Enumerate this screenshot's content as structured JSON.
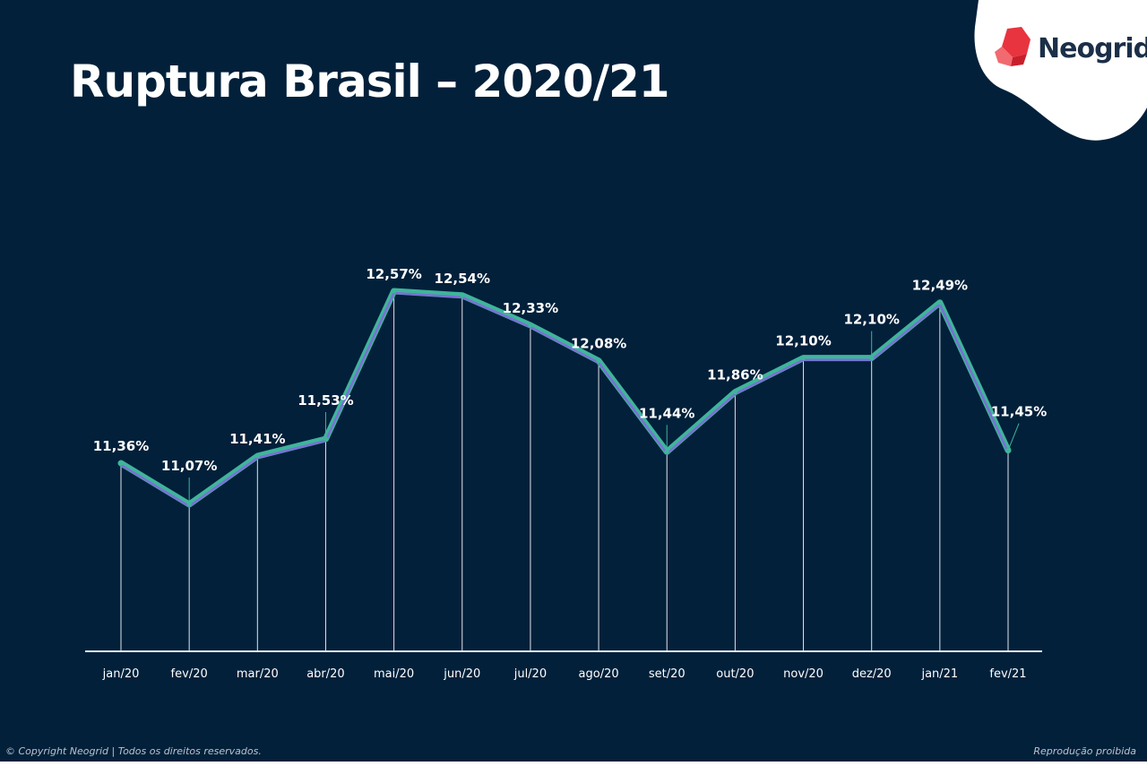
{
  "header": {
    "title": "Ruptura Brasil – 2020/21",
    "logo_text": "Neogrid"
  },
  "footer": {
    "copyright": "© Copyright Neogrid | Todos os direitos reservados.",
    "notice": "Reprodução proibida"
  },
  "colors": {
    "background": "#02203a",
    "line_outer": "#3fb59a",
    "line_inner": "#7a6fd6",
    "logo_red": "#e8343f"
  },
  "chart_data": {
    "type": "line",
    "categories": [
      "jan/20",
      "fev/20",
      "mar/20",
      "abr/20",
      "mai/20",
      "jun/20",
      "jul/20",
      "ago/20",
      "set/20",
      "out/20",
      "nov/20",
      "dez/20",
      "jan/21",
      "fev/21"
    ],
    "series": [
      {
        "values": [
          11.36,
          11.07,
          11.41,
          11.53,
          12.57,
          12.54,
          12.33,
          12.08,
          11.44,
          11.86,
          12.1,
          12.1,
          12.49,
          11.45
        ]
      }
    ],
    "data_labels": [
      "11,36%",
      "11,07%",
      "11,41%",
      "11,53%",
      "12,57%",
      "12,54%",
      "12,33%",
      "12,08%",
      "11,44%",
      "11,86%",
      "12,10%",
      "12,10%",
      "12,49%",
      "11,45%"
    ],
    "title": "Ruptura Brasil – 2020/21",
    "xlabel": "",
    "ylabel": "",
    "grid": false,
    "drop_lines": true
  }
}
